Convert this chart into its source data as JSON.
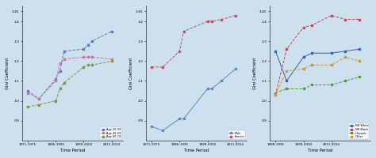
{
  "bg_color": "#cce0ee",
  "p1": {
    "xlabel": "Time Period",
    "ylabel": "Gini Coefficient",
    "ylim": [
      0.08,
      0.148
    ],
    "yticks": [
      0.09,
      0.1,
      0.11,
      0.12,
      0.13,
      0.14,
      0.145
    ],
    "ytick_labels": [
      ".09",
      ".10",
      ".11",
      ".12",
      ".13",
      ".14",
      ".145"
    ],
    "xtick_labels": [
      "1971-1975",
      "1986-1991",
      "1999-2002",
      "2011-2014"
    ],
    "series": {
      "Age 20-39": {
        "x": [
          0,
          0.4,
          1,
          1.15,
          1.3,
          2,
          2.15,
          2.3,
          3
        ],
        "y": [
          0.105,
          0.101,
          0.111,
          0.115,
          0.125,
          0.126,
          0.128,
          0.13,
          0.135
        ],
        "color": "#6677bb",
        "ls": "--",
        "marker": "s"
      },
      "Age 40-59": {
        "x": [
          0,
          0.4,
          1,
          1.15,
          1.3,
          2,
          2.15,
          2.3,
          3
        ],
        "y": [
          0.104,
          0.101,
          0.11,
          0.119,
          0.121,
          0.122,
          0.122,
          0.122,
          0.121
        ],
        "color": "#cc7799",
        "ls": "--",
        "marker": "s"
      },
      "Age 60-74": {
        "x": [
          0,
          0.4,
          1,
          1.15,
          1.3,
          2,
          2.15,
          2.3,
          3
        ],
        "y": [
          0.097,
          0.098,
          0.1,
          0.106,
          0.109,
          0.117,
          0.118,
          0.118,
          0.12
        ],
        "color": "#779944",
        "ls": "--",
        "marker": "s"
      }
    }
  },
  "p2": {
    "xlabel": "Time Period",
    "ylabel": "Gini Coefficient",
    "ylim": [
      0.08,
      0.148
    ],
    "yticks": [
      0.09,
      0.1,
      0.11,
      0.12,
      0.13,
      0.14,
      0.145
    ],
    "ytick_labels": [
      ".09",
      ".10",
      ".11",
      ".12",
      ".13",
      ".14",
      ".145"
    ],
    "xtick_labels": [
      "1971-1975",
      "1986-1991",
      "1999-2002",
      "2011-2014"
    ],
    "series": {
      "Male": {
        "x": [
          0,
          0.4,
          1,
          1.15,
          2,
          2.15,
          2.5,
          3
        ],
        "y": [
          0.087,
          0.085,
          0.091,
          0.091,
          0.106,
          0.106,
          0.11,
          0.116
        ],
        "color": "#6688bb",
        "ls": "-",
        "marker": "s"
      },
      "Female": {
        "x": [
          0,
          0.4,
          1,
          1.15,
          2,
          2.15,
          2.5,
          3
        ],
        "y": [
          0.117,
          0.117,
          0.125,
          0.135,
          0.14,
          0.14,
          0.141,
          0.143
        ],
        "color": "#bb5566",
        "ls": "--",
        "marker": "s"
      }
    }
  },
  "p3": {
    "xlabel": "Time Period",
    "ylabel": "Gini Coefficient",
    "ylim": [
      0.08,
      0.148
    ],
    "yticks": [
      0.09,
      0.1,
      0.11,
      0.12,
      0.13,
      0.14,
      0.145
    ],
    "ytick_labels": [
      ".09",
      ".10",
      ".11",
      ".12",
      ".13",
      ".14",
      ".145"
    ],
    "xtick_labels": [
      "1988-1991",
      "1999-2002",
      "2011-2014"
    ],
    "series": {
      "NH White": {
        "x": [
          0,
          0.4,
          1,
          1.3,
          2,
          2.5,
          3
        ],
        "y": [
          0.125,
          0.11,
          0.122,
          0.124,
          0.124,
          0.125,
          0.126
        ],
        "color": "#3366aa",
        "ls": "-",
        "marker": "s"
      },
      "NH Black": {
        "x": [
          0,
          0.4,
          1,
          1.3,
          2,
          2.5,
          3
        ],
        "y": [
          0.103,
          0.126,
          0.137,
          0.138,
          0.143,
          0.141,
          0.141
        ],
        "color": "#cc4455",
        "ls": "--",
        "marker": "s"
      },
      "Hispanic": {
        "x": [
          0,
          0.4,
          1,
          1.3,
          2,
          2.5,
          3
        ],
        "y": [
          0.104,
          0.106,
          0.106,
          0.108,
          0.108,
          0.11,
          0.112
        ],
        "color": "#559933",
        "ls": "--",
        "marker": "s"
      },
      "Other": {
        "x": [
          0,
          0.4,
          1,
          1.3,
          2,
          2.5,
          3
        ],
        "y": [
          0.103,
          0.115,
          0.116,
          0.118,
          0.118,
          0.122,
          0.12
        ],
        "color": "#cc9933",
        "ls": "--",
        "marker": "s"
      }
    }
  }
}
